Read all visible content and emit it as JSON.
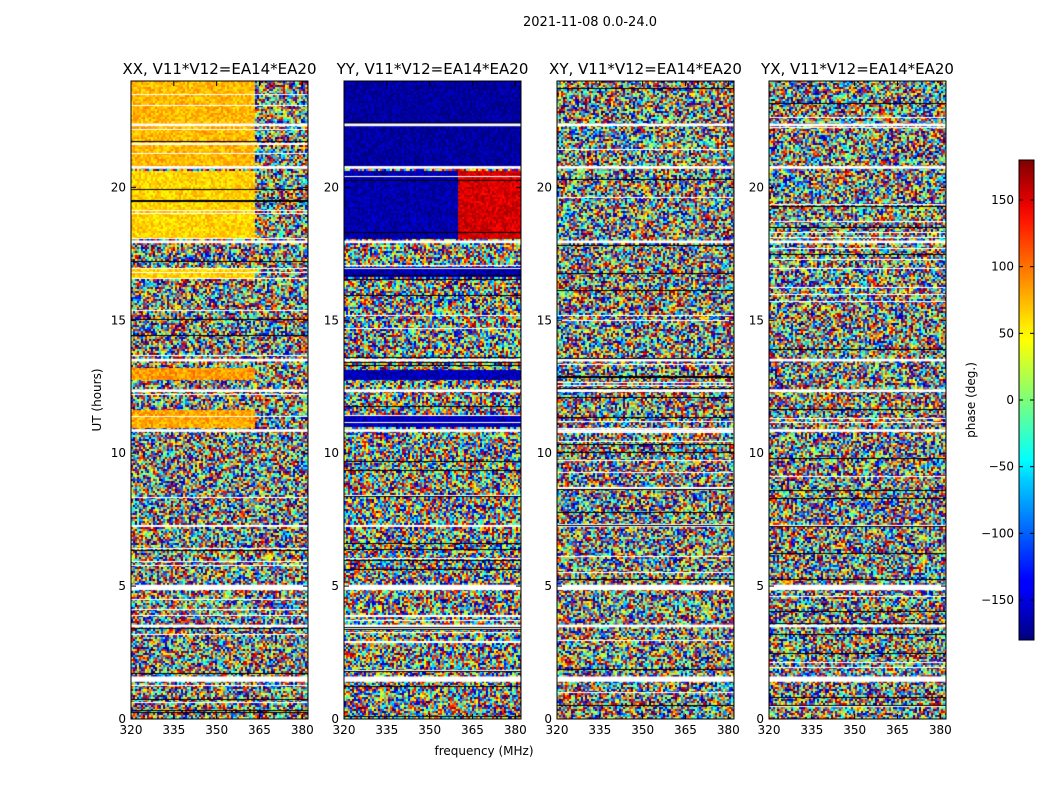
{
  "chart_data": {
    "type": "heatmap",
    "title": "2021-11-08 0.0-24.0",
    "xlabel": "frequency (MHz)",
    "ylabel": "UT (hours)",
    "xlim": [
      320,
      382
    ],
    "ylim": [
      0,
      24
    ],
    "x_ticks": [
      320,
      335,
      350,
      365,
      380
    ],
    "y_ticks": [
      0,
      5,
      10,
      15,
      20
    ],
    "colormap": "jet",
    "colorbar": {
      "label": "phase (deg.)",
      "range": [
        -180,
        180
      ],
      "ticks": [
        -150,
        -100,
        -50,
        0,
        50,
        100,
        150
      ]
    },
    "panels": [
      {
        "title": "XX, V11*V12=EA14*EA20",
        "polarization": "XX"
      },
      {
        "title": "YY, V11*V12=EA14*EA20",
        "polarization": "YY"
      },
      {
        "title": "XY, V11*V12=EA14*EA20",
        "polarization": "XY"
      },
      {
        "title": "YX, V11*V12=EA14*EA20",
        "polarization": "YX"
      }
    ],
    "white_gaps_hours": [
      [
        1.4,
        1.6
      ],
      [
        3.45,
        3.55
      ],
      [
        4.85,
        5.05
      ],
      [
        7.25,
        7.3
      ],
      [
        10.8,
        10.9
      ],
      [
        12.3,
        12.4
      ],
      [
        13.45,
        13.55
      ],
      [
        17.9,
        18.0
      ],
      [
        20.7,
        20.8
      ],
      [
        22.3,
        22.4
      ]
    ],
    "coherent_phase_regions": [
      {
        "panel": "XX",
        "x_range": [
          320,
          363
        ],
        "hours": [
          18.1,
          20.6
        ],
        "phase_deg": 60
      },
      {
        "panel": "XX",
        "x_range": [
          320,
          363
        ],
        "hours": [
          20.8,
          24.0
        ],
        "phase_deg": 70
      },
      {
        "panel": "XX",
        "x_range": [
          320,
          363
        ],
        "hours": [
          11.0,
          11.6
        ],
        "phase_deg": 75
      },
      {
        "panel": "XX",
        "x_range": [
          320,
          363
        ],
        "hours": [
          12.8,
          13.2
        ],
        "phase_deg": 80
      },
      {
        "panel": "XX",
        "x_range": [
          320,
          363
        ],
        "hours": [
          16.6,
          16.9
        ],
        "phase_deg": 60
      },
      {
        "panel": "YY",
        "x_range": [
          320,
          360
        ],
        "hours": [
          18.1,
          20.6
        ],
        "phase_deg": -165
      },
      {
        "panel": "YY",
        "x_range": [
          360,
          382
        ],
        "hours": [
          18.1,
          20.6
        ],
        "phase_deg": 150
      },
      {
        "panel": "YY",
        "x_range": [
          320,
          382
        ],
        "hours": [
          20.8,
          24.0
        ],
        "phase_deg": -170
      },
      {
        "panel": "YY",
        "x_range": [
          320,
          382
        ],
        "hours": [
          16.7,
          17.0
        ],
        "phase_deg": -165
      },
      {
        "panel": "YY",
        "x_range": [
          320,
          382
        ],
        "hours": [
          11.0,
          11.4
        ],
        "phase_deg": -160
      },
      {
        "panel": "YY",
        "x_range": [
          320,
          382
        ],
        "hours": [
          12.8,
          13.1
        ],
        "phase_deg": -160
      }
    ]
  }
}
